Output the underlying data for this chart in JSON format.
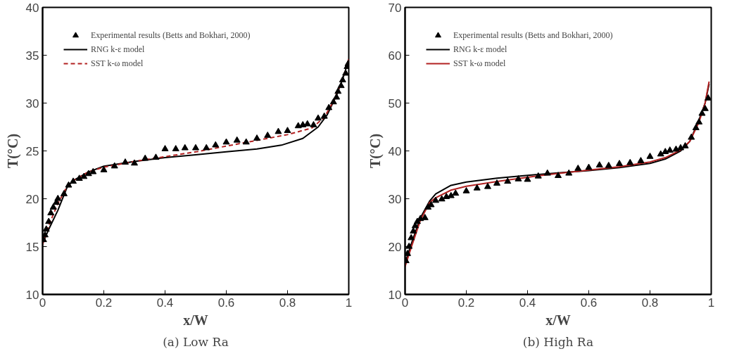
{
  "chart_data": [
    {
      "type": "line",
      "title": "(a) Low Ra",
      "xlabel": "x/W",
      "ylabel": "T(°C)",
      "xlim": [
        0,
        1
      ],
      "ylim": [
        10,
        40
      ],
      "xticks": [
        0,
        0.2,
        0.4,
        0.6,
        0.8,
        1
      ],
      "yticks": [
        10,
        15,
        20,
        25,
        30,
        35,
        40
      ],
      "legend": "top left",
      "grid": false,
      "series": [
        {
          "name": "Experimental results (Betts and Bokhari, 2000)",
          "type": "scatter",
          "marker": "triangle",
          "color": "#000000",
          "x": [
            0.003,
            0.008,
            0.012,
            0.02,
            0.027,
            0.035,
            0.045,
            0.05,
            0.07,
            0.085,
            0.1,
            0.12,
            0.135,
            0.15,
            0.165,
            0.2,
            0.235,
            0.27,
            0.3,
            0.335,
            0.37,
            0.4,
            0.435,
            0.465,
            0.5,
            0.535,
            0.565,
            0.6,
            0.635,
            0.665,
            0.7,
            0.735,
            0.77,
            0.8,
            0.835,
            0.85,
            0.865,
            0.885,
            0.9,
            0.92,
            0.935,
            0.95,
            0.96,
            0.965,
            0.975,
            0.98,
            0.99,
            0.995,
            0.998
          ],
          "values": [
            15.7,
            16.2,
            16.8,
            17.6,
            18.5,
            19.1,
            19.6,
            20.0,
            20.5,
            21.4,
            21.8,
            22.1,
            22.3,
            22.6,
            22.8,
            23.0,
            23.4,
            23.8,
            23.7,
            24.2,
            24.3,
            25.2,
            25.2,
            25.3,
            25.3,
            25.3,
            25.6,
            25.9,
            26.1,
            25.9,
            26.3,
            26.6,
            27.0,
            27.1,
            27.6,
            27.7,
            27.8,
            27.7,
            28.4,
            28.6,
            29.5,
            30.1,
            30.6,
            31.2,
            31.8,
            32.4,
            33.1,
            33.8,
            34.1
          ]
        },
        {
          "name": "RNG k-ε model",
          "line_style": "solid",
          "color": "#000000",
          "x": [
            0,
            0.02,
            0.05,
            0.08,
            0.1,
            0.15,
            0.2,
            0.3,
            0.4,
            0.5,
            0.6,
            0.7,
            0.78,
            0.85,
            0.9,
            0.93,
            0.96,
            0.98,
            1.0
          ],
          "values": [
            15.3,
            16.8,
            18.8,
            21.2,
            21.9,
            22.8,
            23.4,
            23.9,
            24.3,
            24.6,
            24.9,
            25.2,
            25.6,
            26.3,
            27.5,
            28.8,
            30.8,
            32.5,
            34.5
          ]
        },
        {
          "name": "SST k-ω model",
          "line_style": "dashed",
          "color": "#b22222",
          "x": [
            0,
            0.02,
            0.05,
            0.08,
            0.1,
            0.15,
            0.2,
            0.3,
            0.4,
            0.5,
            0.6,
            0.7,
            0.8,
            0.88,
            0.92,
            0.95,
            0.98,
            1.0
          ],
          "values": [
            15.2,
            17.2,
            19.5,
            21.3,
            21.9,
            22.8,
            23.3,
            23.9,
            24.4,
            24.9,
            25.5,
            26.1,
            26.7,
            27.4,
            28.5,
            30.2,
            32.5,
            34.6
          ]
        }
      ]
    },
    {
      "type": "line",
      "title": "(b) High Ra",
      "xlabel": "x/W",
      "ylabel": "T(°C)",
      "xlim": [
        0,
        1
      ],
      "ylim": [
        10,
        70
      ],
      "xticks": [
        0,
        0.2,
        0.4,
        0.6,
        0.8,
        1
      ],
      "yticks": [
        10,
        20,
        30,
        40,
        50,
        60,
        70
      ],
      "legend": "top left",
      "grid": false,
      "series": [
        {
          "name": "Experimental results (Betts and Bokhari, 2000)",
          "type": "scatter",
          "marker": "triangle",
          "color": "#000000",
          "x": [
            0.003,
            0.008,
            0.013,
            0.02,
            0.027,
            0.033,
            0.04,
            0.05,
            0.065,
            0.075,
            0.085,
            0.1,
            0.12,
            0.135,
            0.15,
            0.165,
            0.2,
            0.235,
            0.27,
            0.3,
            0.335,
            0.37,
            0.4,
            0.435,
            0.465,
            0.5,
            0.535,
            0.565,
            0.6,
            0.635,
            0.665,
            0.7,
            0.735,
            0.77,
            0.8,
            0.835,
            0.85,
            0.865,
            0.885,
            0.9,
            0.915,
            0.935,
            0.95,
            0.96,
            0.97,
            0.98,
            0.99
          ],
          "values": [
            17,
            18.5,
            20,
            21.8,
            23.2,
            24.3,
            25.2,
            25.8,
            26,
            28.2,
            28.7,
            29.6,
            29.9,
            30.4,
            30.6,
            31.1,
            31.6,
            32.2,
            32.5,
            33.2,
            33.6,
            34.1,
            34.0,
            34.7,
            35.3,
            34.8,
            35.3,
            36.3,
            36.5,
            37.0,
            36.9,
            37.3,
            37.5,
            37.9,
            38.8,
            39.3,
            39.8,
            40.1,
            40.3,
            40.6,
            41.0,
            42.8,
            44.8,
            46.0,
            47.8,
            48.8,
            51.0
          ]
        },
        {
          "name": "RNG k-ε model",
          "line_style": "solid",
          "color": "#000000",
          "x": [
            0,
            0.02,
            0.05,
            0.08,
            0.1,
            0.15,
            0.2,
            0.3,
            0.4,
            0.5,
            0.6,
            0.7,
            0.8,
            0.85,
            0.9,
            0.93,
            0.96,
            0.98,
            0.993
          ],
          "values": [
            16.5,
            20.5,
            26,
            29.5,
            31,
            32.8,
            33.5,
            34.3,
            34.9,
            35.4,
            35.9,
            36.5,
            37.4,
            38.3,
            40.0,
            42.0,
            46.5,
            50,
            54
          ]
        },
        {
          "name": "SST k-ω model",
          "line_style": "solid",
          "color": "#b22222",
          "x": [
            0,
            0.02,
            0.05,
            0.08,
            0.1,
            0.15,
            0.2,
            0.3,
            0.4,
            0.5,
            0.6,
            0.7,
            0.8,
            0.85,
            0.9,
            0.93,
            0.96,
            0.98,
            0.993
          ],
          "values": [
            15.8,
            19.8,
            25.5,
            29.2,
            30.2,
            31.8,
            32.6,
            33.6,
            34.5,
            35.3,
            36.0,
            36.7,
            37.7,
            38.6,
            40.2,
            42.0,
            46,
            50,
            54.5
          ]
        }
      ]
    }
  ]
}
